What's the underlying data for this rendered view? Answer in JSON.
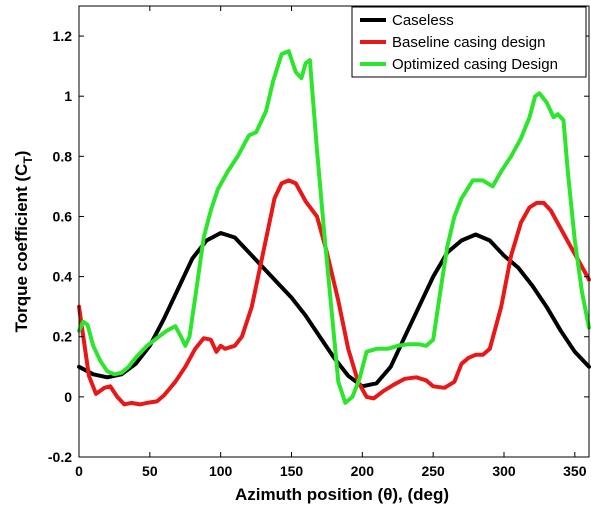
{
  "chart_data": {
    "type": "line",
    "title": "",
    "xlabel": "Azimuth position (θ), (deg)",
    "ylabel_main": "Torque coefficient (C",
    "ylabel_sub": "T",
    "ylabel_close": ")",
    "xlim": [
      0,
      360
    ],
    "ylim": [
      -0.2,
      1.3
    ],
    "xticks": [
      0,
      50,
      100,
      150,
      200,
      250,
      300,
      350
    ],
    "yticks": [
      -0.2,
      0,
      0.2,
      0.4,
      0.6,
      0.8,
      1,
      1.2
    ],
    "ytick_labels": [
      "-0.2",
      "0",
      "0.2",
      "0.4",
      "0.6",
      "0.8",
      "1",
      "1.2"
    ],
    "legend_position": "top-right",
    "grid": false,
    "series": [
      {
        "name": "Caseless",
        "color": "#000000",
        "x": [
          0,
          10,
          20,
          30,
          40,
          50,
          60,
          70,
          80,
          90,
          100,
          110,
          120,
          130,
          140,
          150,
          160,
          170,
          180,
          190,
          200,
          210,
          220,
          230,
          240,
          250,
          260,
          270,
          280,
          290,
          300,
          310,
          320,
          330,
          340,
          350,
          360
        ],
        "y": [
          0.1,
          0.075,
          0.065,
          0.075,
          0.11,
          0.17,
          0.26,
          0.36,
          0.46,
          0.52,
          0.545,
          0.53,
          0.48,
          0.43,
          0.38,
          0.33,
          0.27,
          0.2,
          0.13,
          0.07,
          0.035,
          0.045,
          0.1,
          0.2,
          0.3,
          0.4,
          0.48,
          0.52,
          0.54,
          0.52,
          0.47,
          0.43,
          0.37,
          0.3,
          0.22,
          0.15,
          0.1
        ]
      },
      {
        "name": "Baseline casing design",
        "color": "#e81818",
        "x": [
          0,
          3,
          7,
          12,
          18,
          22,
          27,
          32,
          37,
          43,
          48,
          55,
          60,
          68,
          75,
          82,
          88,
          93,
          97,
          100,
          103,
          110,
          115,
          122,
          130,
          138,
          143,
          148,
          153,
          160,
          168,
          175,
          183,
          190,
          197,
          203,
          208,
          215,
          222,
          230,
          238,
          245,
          250,
          258,
          265,
          270,
          275,
          280,
          285,
          290,
          298,
          305,
          312,
          318,
          323,
          328,
          333,
          340,
          347,
          353,
          360
        ],
        "y": [
          0.3,
          0.2,
          0.07,
          0.01,
          0.03,
          0.035,
          0.0,
          -0.025,
          -0.02,
          -0.025,
          -0.02,
          -0.015,
          0.005,
          0.05,
          0.1,
          0.16,
          0.195,
          0.19,
          0.15,
          0.17,
          0.16,
          0.17,
          0.2,
          0.3,
          0.48,
          0.66,
          0.71,
          0.72,
          0.71,
          0.65,
          0.6,
          0.48,
          0.32,
          0.16,
          0.05,
          0.0,
          -0.005,
          0.02,
          0.04,
          0.06,
          0.065,
          0.055,
          0.035,
          0.03,
          0.05,
          0.11,
          0.13,
          0.14,
          0.14,
          0.16,
          0.3,
          0.47,
          0.58,
          0.63,
          0.645,
          0.645,
          0.62,
          0.56,
          0.5,
          0.45,
          0.39
        ]
      },
      {
        "name": "Optimized casing Design",
        "color": "#2ee52e",
        "x": [
          0,
          3,
          6,
          10,
          15,
          20,
          25,
          30,
          35,
          40,
          48,
          55,
          62,
          68,
          72,
          75,
          78,
          82,
          88,
          93,
          98,
          105,
          112,
          120,
          125,
          132,
          137,
          143,
          148,
          153,
          157,
          160,
          163,
          168,
          173,
          178,
          183,
          188,
          193,
          198,
          203,
          210,
          218,
          225,
          232,
          240,
          245,
          250,
          255,
          260,
          265,
          270,
          278,
          285,
          292,
          298,
          305,
          312,
          318,
          322,
          325,
          330,
          335,
          338,
          342,
          345,
          350,
          355,
          360
        ],
        "y": [
          0.22,
          0.25,
          0.24,
          0.17,
          0.12,
          0.085,
          0.075,
          0.08,
          0.1,
          0.13,
          0.17,
          0.195,
          0.22,
          0.235,
          0.2,
          0.17,
          0.2,
          0.33,
          0.53,
          0.62,
          0.69,
          0.75,
          0.8,
          0.87,
          0.88,
          0.95,
          1.05,
          1.14,
          1.15,
          1.08,
          1.06,
          1.11,
          1.12,
          0.82,
          0.55,
          0.3,
          0.05,
          -0.02,
          0.0,
          0.06,
          0.15,
          0.16,
          0.16,
          0.17,
          0.175,
          0.175,
          0.17,
          0.19,
          0.35,
          0.5,
          0.6,
          0.66,
          0.72,
          0.72,
          0.7,
          0.75,
          0.8,
          0.86,
          0.93,
          1.0,
          1.01,
          0.98,
          0.93,
          0.94,
          0.92,
          0.75,
          0.52,
          0.35,
          0.23
        ]
      }
    ]
  }
}
